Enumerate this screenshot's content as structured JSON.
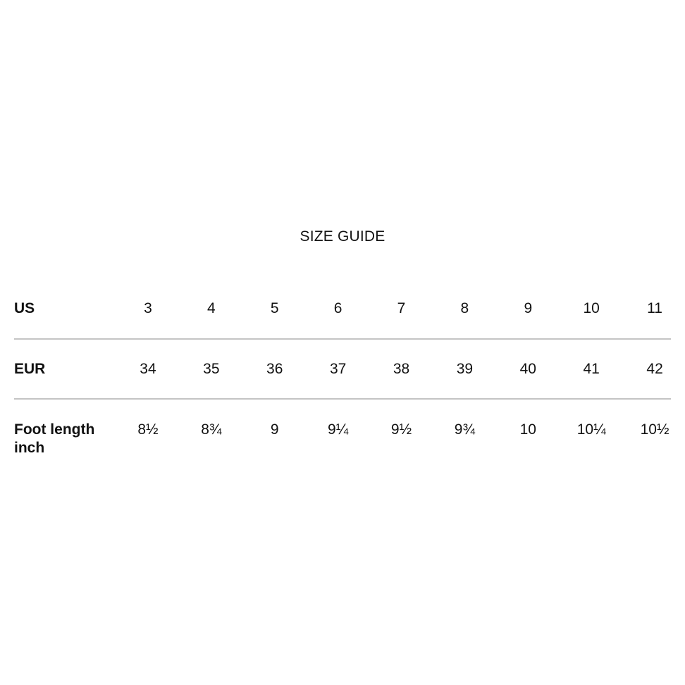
{
  "title": "SIZE GUIDE",
  "chart_data": {
    "type": "table",
    "title": "SIZE GUIDE",
    "orientation": "rows-as-headers",
    "rows": [
      {
        "label": "US",
        "values": [
          "3",
          "4",
          "5",
          "6",
          "7",
          "8",
          "9",
          "10",
          "11"
        ]
      },
      {
        "label": "EUR",
        "values": [
          "34",
          "35",
          "36",
          "37",
          "38",
          "39",
          "40",
          "41",
          "42"
        ]
      },
      {
        "label": "Foot length inch",
        "values": [
          "8½",
          "8¾",
          "9",
          "9¼",
          "9½",
          "9¾",
          "10",
          "10¼",
          "10½"
        ]
      }
    ],
    "layout": {
      "grid": "horizontal dividers between rows only",
      "legend": "none"
    }
  },
  "colors": {
    "background": "#ffffff",
    "text": "#121212",
    "divider": "#c4c4c4"
  }
}
